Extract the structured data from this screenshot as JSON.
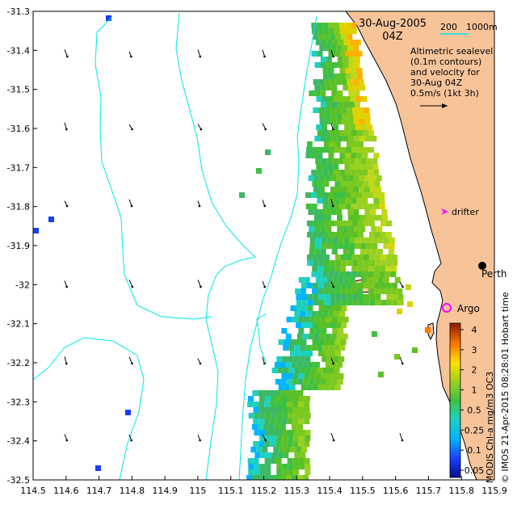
{
  "map": {
    "title_date": "30-Aug-2005",
    "title_time": "04Z",
    "scale_a": "200",
    "scale_b": "1000m",
    "legend_lines": [
      "Altimetric sealevel",
      "(0.1m contours)",
      "and velocity for",
      "30-Aug 04Z",
      "0.5m/s (1kt 3h)"
    ],
    "drifter_label": "drifter",
    "city_label": "Perth",
    "argo_label": "Argo",
    "credit_left": "MODIS Chl-a mg/m3 OC3",
    "credit_right": "© IMOS 21-Apr-2015 08:28:01 Hobart time",
    "colors": {
      "land": "#f7c49a",
      "contour": "#00e5ee",
      "drifter": "#ff00ff",
      "argo": "#ff00ff"
    }
  },
  "axes": {
    "x_ticks": [
      "114.5",
      "114.6",
      "114.7",
      "114.8",
      "114.9",
      "115",
      "115.1",
      "115.2",
      "115.3",
      "115.4",
      "115.5",
      "115.6",
      "115.7",
      "115.8",
      "115.9"
    ],
    "y_ticks": [
      "-31.3",
      "-31.4",
      "-31.5",
      "-31.6",
      "-31.7",
      "-31.8",
      "-31.9",
      "-32",
      "-32.1",
      "-32.2",
      "-32.3",
      "-32.4",
      "-32.5"
    ],
    "xlim": [
      114.5,
      115.9
    ],
    "ylim": [
      -32.5,
      -31.3
    ]
  },
  "colorbar": {
    "labels": [
      "4",
      "3",
      "2",
      "1",
      "0.5",
      "0.25",
      "0.1",
      "0.05"
    ],
    "values": [
      4,
      3,
      2,
      1,
      0.5,
      0.25,
      0.1,
      0.05
    ]
  }
}
